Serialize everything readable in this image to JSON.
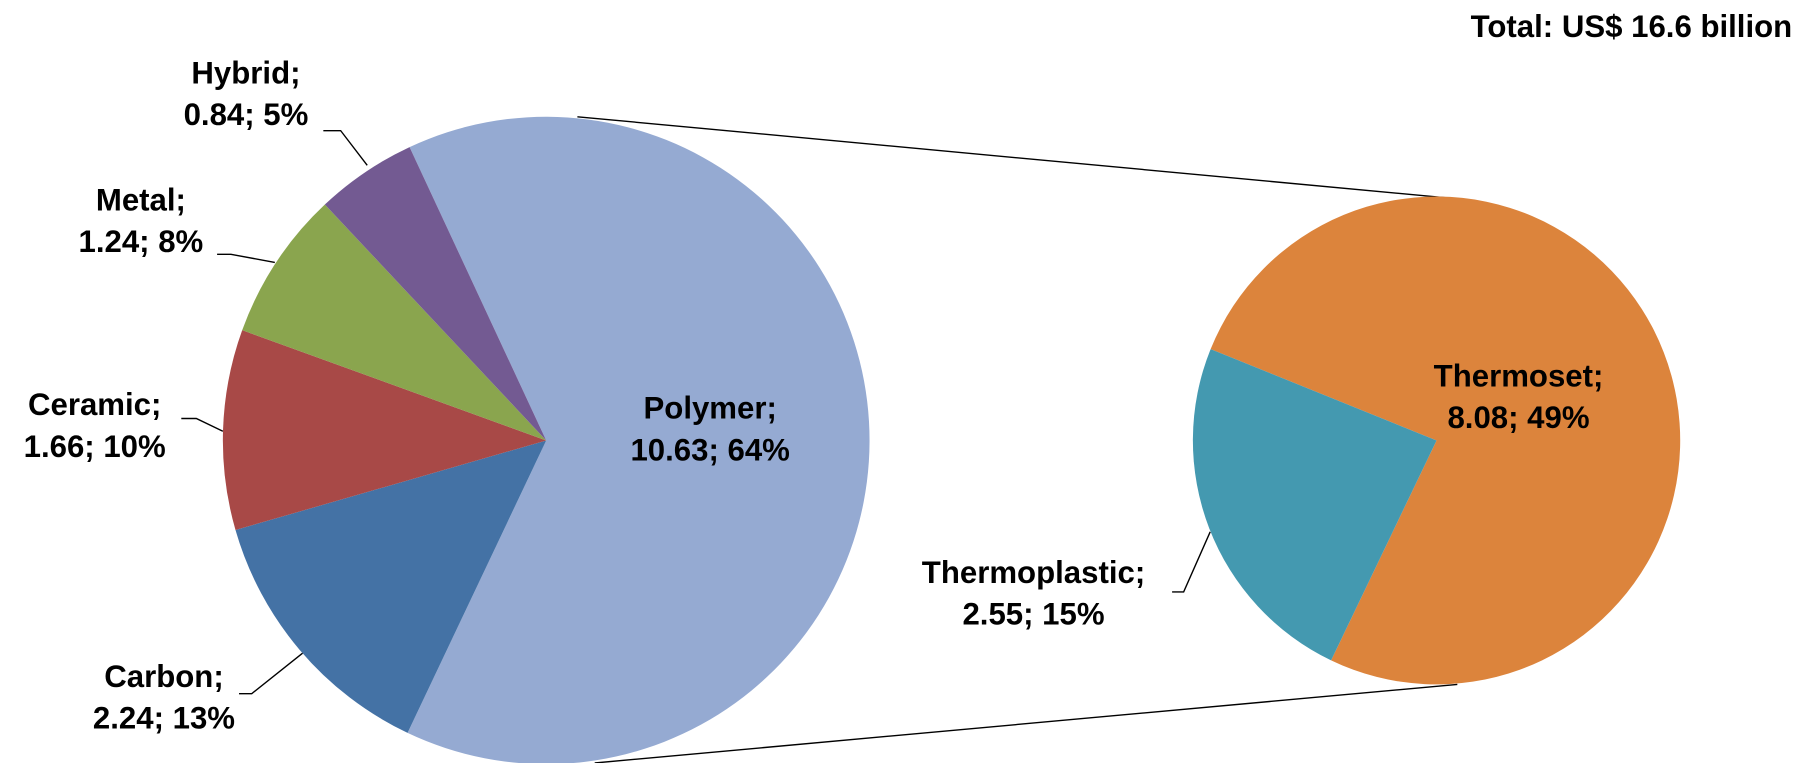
{
  "chart_data": {
    "type": "pie",
    "title": "Total: US$ 16.6 billion",
    "categories": [
      "Polymer;",
      "Carbon;",
      "Ceramic;",
      "Metal;",
      "Hybrid;"
    ],
    "values": [
      10.63,
      2.24,
      1.66,
      1.24,
      0.84
    ],
    "value_labels": [
      "10.63; 64%",
      "2.24; 13%",
      "1.66; 10%",
      "1.24; 8%",
      "0.84; 5%"
    ],
    "colors": [
      "#95aad2",
      "#4472a5",
      "#a84947",
      "#8aa54e",
      "#735a92"
    ],
    "secondary": {
      "categories": [
        "Thermoset;",
        "Thermoplastic;"
      ],
      "values": [
        8.08,
        2.55
      ],
      "value_labels": [
        "8.08; 49%",
        "2.55; 15%"
      ],
      "colors": [
        "#dc843c",
        "#4499b0"
      ]
    }
  }
}
